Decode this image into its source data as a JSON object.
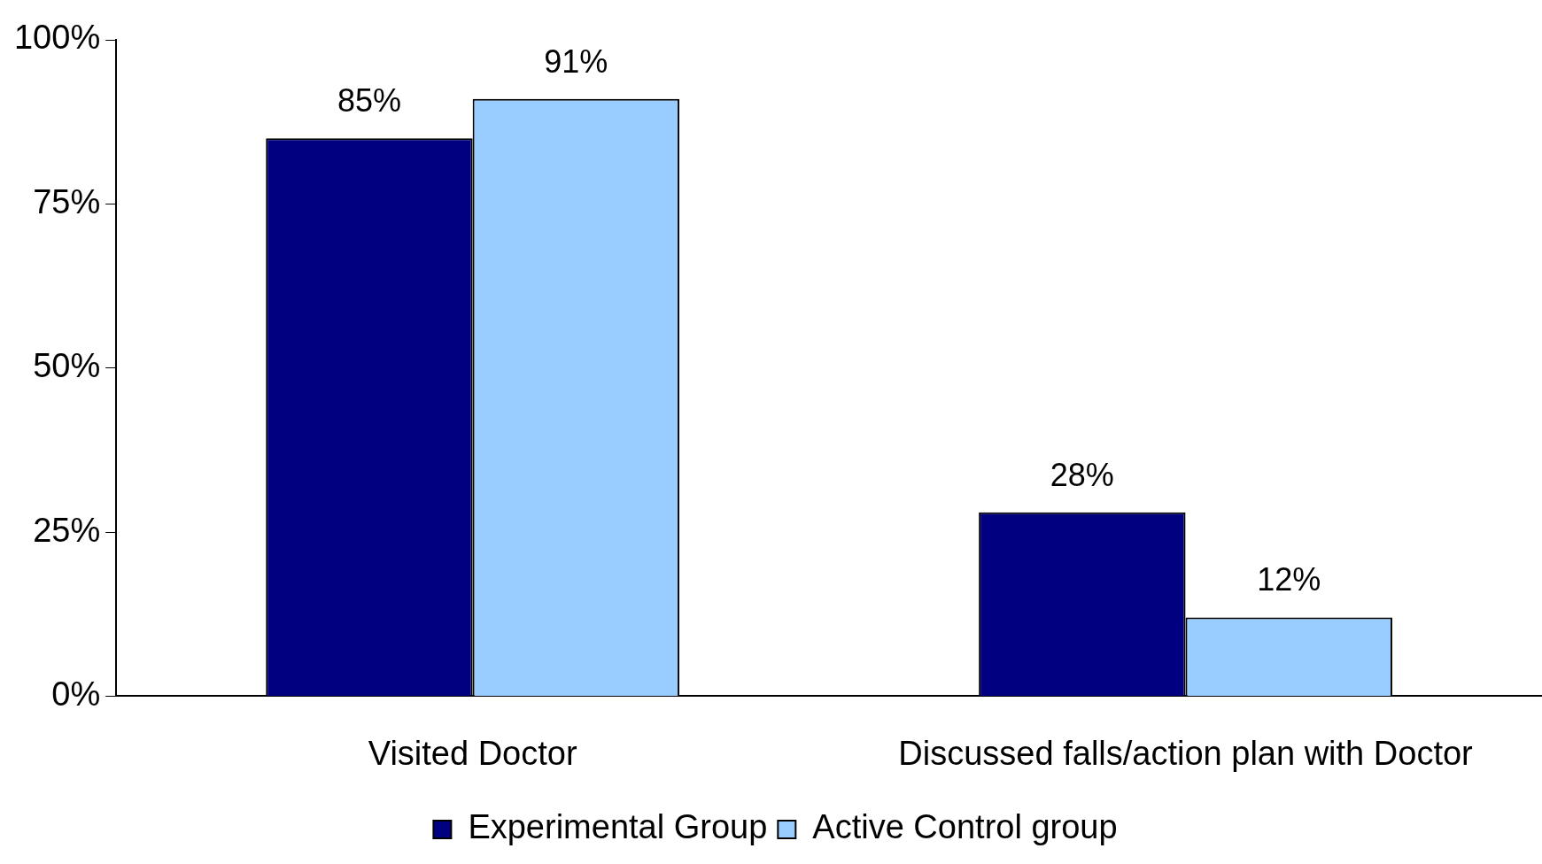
{
  "chart_data": {
    "type": "bar",
    "categories": [
      "Visited Doctor",
      "Discussed falls/action plan with Doctor"
    ],
    "series": [
      {
        "name": "Experimental Group",
        "color": "#000080",
        "values": [
          85,
          28
        ],
        "value_labels": [
          "85%",
          "28%"
        ]
      },
      {
        "name": "Active Control group",
        "color": "#99ccff",
        "values": [
          91,
          12
        ],
        "value_labels": [
          "91%",
          "12%"
        ]
      }
    ],
    "ylim": [
      0,
      100
    ],
    "yticks": [
      {
        "value": 0,
        "label": "0%"
      },
      {
        "value": 25,
        "label": "25%"
      },
      {
        "value": 50,
        "label": "50%"
      },
      {
        "value": 75,
        "label": "75%"
      },
      {
        "value": 100,
        "label": "100%"
      }
    ],
    "grid": false,
    "legend": "bottom"
  }
}
